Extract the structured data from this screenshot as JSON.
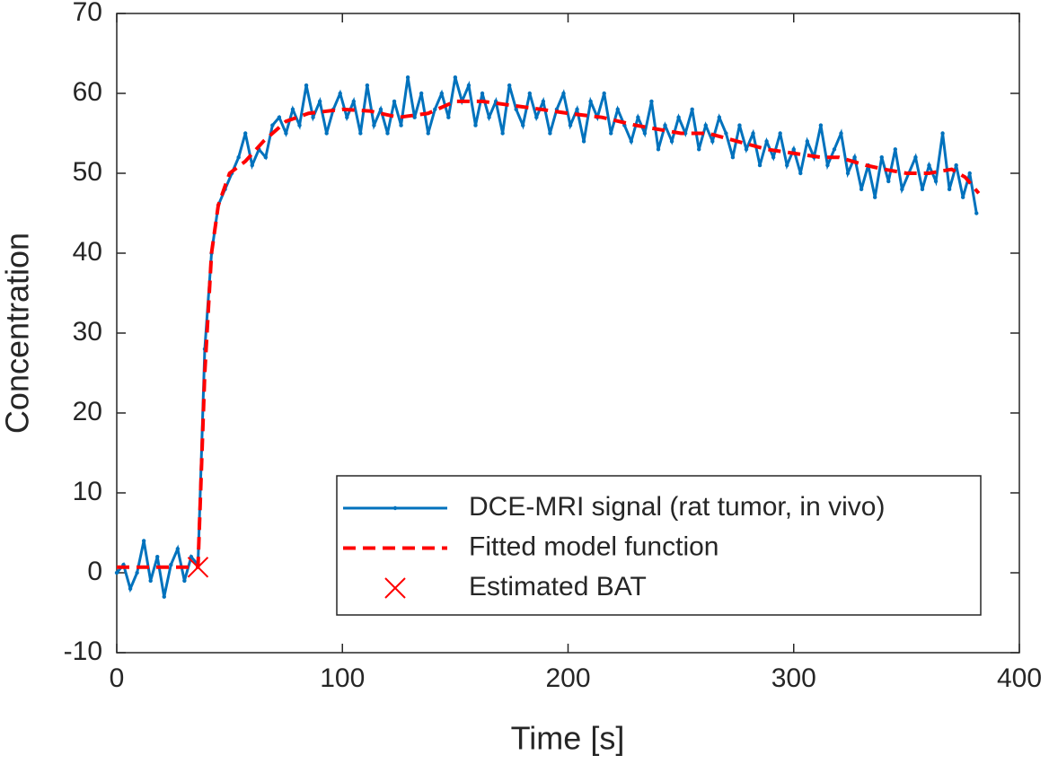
{
  "chart_data": {
    "type": "line",
    "xlabel": "Time [s]",
    "ylabel": "Concentration",
    "xlim": [
      0,
      400
    ],
    "ylim": [
      -10,
      70
    ],
    "xticks": [
      0,
      100,
      200,
      300,
      400
    ],
    "yticks": [
      -10,
      0,
      10,
      20,
      30,
      40,
      50,
      60,
      70
    ],
    "legend": "lower right",
    "series": [
      {
        "name": "DCE-MRI signal (rat tumor, in vivo)",
        "color": "#0072bd",
        "style": "solid-dots",
        "x": [
          0,
          3,
          6,
          9,
          12,
          15,
          18,
          21,
          24,
          27,
          30,
          33,
          36,
          39,
          42,
          45,
          48,
          51,
          54,
          57,
          60,
          63,
          66,
          69,
          72,
          75,
          78,
          81,
          84,
          87,
          90,
          93,
          96,
          99,
          102,
          105,
          108,
          111,
          114,
          117,
          120,
          123,
          126,
          129,
          132,
          135,
          138,
          141,
          144,
          147,
          150,
          153,
          156,
          159,
          162,
          165,
          168,
          171,
          174,
          177,
          180,
          183,
          186,
          189,
          192,
          195,
          198,
          201,
          204,
          207,
          210,
          213,
          216,
          219,
          222,
          225,
          228,
          231,
          234,
          237,
          240,
          243,
          246,
          249,
          252,
          255,
          258,
          261,
          264,
          267,
          270,
          273,
          276,
          279,
          282,
          285,
          288,
          291,
          294,
          297,
          300,
          303,
          306,
          309,
          312,
          315,
          318,
          321,
          324,
          327,
          330,
          333,
          336,
          339,
          342,
          345,
          348,
          351,
          354,
          357,
          360,
          363,
          366,
          369,
          372,
          375,
          378,
          381
        ],
        "values": [
          0,
          1,
          -2,
          0,
          4,
          -1,
          2,
          -3,
          1,
          3,
          -1,
          2,
          1,
          28,
          40,
          46,
          48,
          50,
          52,
          55,
          51,
          53,
          52,
          56,
          57,
          55,
          58,
          56,
          61,
          57,
          59,
          55,
          58,
          60,
          57,
          59,
          55,
          61,
          56,
          58,
          55,
          59,
          56,
          62,
          57,
          60,
          55,
          58,
          60,
          57,
          62,
          59,
          61,
          56,
          60,
          57,
          59,
          55,
          61,
          58,
          56,
          60,
          57,
          59,
          55,
          58,
          60,
          56,
          58,
          54,
          59,
          57,
          60,
          55,
          58,
          56,
          54,
          57,
          55,
          59,
          53,
          56,
          54,
          57,
          55,
          58,
          53,
          56,
          54,
          57,
          55,
          52,
          56,
          53,
          55,
          51,
          54,
          52,
          55,
          51,
          53,
          50,
          54,
          52,
          56,
          51,
          53,
          55,
          50,
          52,
          48,
          51,
          47,
          52,
          49,
          53,
          48,
          50,
          52,
          48,
          51,
          49,
          55,
          48,
          51,
          47,
          50,
          45
        ]
      },
      {
        "name": "Fitted model function",
        "color": "#ff0000",
        "style": "dashed",
        "x": [
          0,
          36,
          39,
          42,
          45,
          50,
          57,
          65,
          75,
          85,
          100,
          112,
          125,
          138,
          150,
          162,
          175,
          188,
          200,
          215,
          230,
          250,
          262,
          275,
          288,
          300,
          312,
          320,
          332,
          340,
          350,
          360,
          370,
          376,
          382
        ],
        "values": [
          0.7,
          0.7,
          25,
          40,
          46,
          50,
          51.5,
          54,
          56.5,
          57.5,
          58,
          57.8,
          57,
          57.5,
          59,
          59,
          58.5,
          58,
          57.5,
          57,
          56,
          55,
          55,
          54,
          53,
          52.5,
          52,
          52,
          51,
          50.5,
          50,
          50,
          50.5,
          49.5,
          47.5
        ]
      },
      {
        "name": "Estimated BAT",
        "color": "#ff0000",
        "style": "cross",
        "x": [
          36
        ],
        "values": [
          0.7
        ]
      }
    ]
  }
}
